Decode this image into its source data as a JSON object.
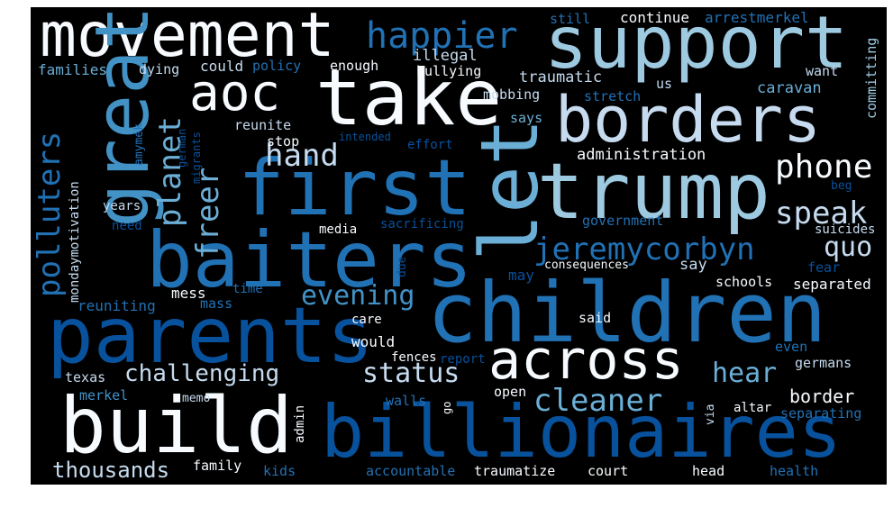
{
  "palette": {
    "background": "#000000",
    "white": "#f7fbff",
    "pale": "#deebf7",
    "light": "#c6dbef",
    "sky": "#9ecae1",
    "mid": "#6baed6",
    "medium": "#4292c6",
    "blue": "#2171b5",
    "deep": "#08519c",
    "navy": "#08306b"
  },
  "words": [
    {
      "text": "movement",
      "color": "white"
    },
    {
      "text": "happier",
      "color": "blue"
    },
    {
      "text": "support",
      "color": "sky"
    },
    {
      "text": "aoc",
      "color": "white"
    },
    {
      "text": "take",
      "color": "white"
    },
    {
      "text": "borders",
      "color": "light"
    },
    {
      "text": "great",
      "color": "medium"
    },
    {
      "text": "first",
      "color": "blue"
    },
    {
      "text": "let",
      "color": "mid"
    },
    {
      "text": "trump",
      "color": "sky"
    },
    {
      "text": "baiters",
      "color": "blue"
    },
    {
      "text": "parents",
      "color": "deep"
    },
    {
      "text": "children",
      "color": "blue"
    },
    {
      "text": "build",
      "color": "white"
    },
    {
      "text": "billionaires",
      "color": "deep"
    },
    {
      "text": "across",
      "color": "white"
    },
    {
      "text": "jeremycorbyn",
      "color": "blue"
    },
    {
      "text": "polluters",
      "color": "blue"
    },
    {
      "text": "planet",
      "color": "mid"
    },
    {
      "text": "freer",
      "color": "mid"
    },
    {
      "text": "hand",
      "color": "light"
    },
    {
      "text": "phone",
      "color": "white"
    },
    {
      "text": "speak",
      "color": "light"
    },
    {
      "text": "quo",
      "color": "light"
    },
    {
      "text": "evening",
      "color": "medium"
    },
    {
      "text": "status",
      "color": "light"
    },
    {
      "text": "challenging",
      "color": "light"
    },
    {
      "text": "hear",
      "color": "mid"
    },
    {
      "text": "cleaner",
      "color": "mid"
    },
    {
      "text": "border",
      "color": "white"
    },
    {
      "text": "thousands",
      "color": "light"
    },
    {
      "text": "illegal",
      "color": "light"
    },
    {
      "text": "continue",
      "color": "white"
    },
    {
      "text": "arrestmerkel",
      "color": "blue"
    },
    {
      "text": "still",
      "color": "blue"
    },
    {
      "text": "committing",
      "color": "sky"
    },
    {
      "text": "want",
      "color": "light"
    },
    {
      "text": "families",
      "color": "mid"
    },
    {
      "text": "dying",
      "color": "light"
    },
    {
      "text": "could",
      "color": "light"
    },
    {
      "text": "policy",
      "color": "blue"
    },
    {
      "text": "enough",
      "color": "white"
    },
    {
      "text": "bullying",
      "color": "white"
    },
    {
      "text": "traumatic",
      "color": "light"
    },
    {
      "text": "caravan",
      "color": "mid"
    },
    {
      "text": "us",
      "color": "light"
    },
    {
      "text": "mobbing",
      "color": "light"
    },
    {
      "text": "stretch",
      "color": "blue"
    },
    {
      "text": "says",
      "color": "mid"
    },
    {
      "text": "amymek",
      "color": "blue"
    },
    {
      "text": "german",
      "color": "deep"
    },
    {
      "text": "migrants",
      "color": "deep"
    },
    {
      "text": "reunite",
      "color": "light"
    },
    {
      "text": "stop",
      "color": "white"
    },
    {
      "text": "intended",
      "color": "deep"
    },
    {
      "text": "effort",
      "color": "deep"
    },
    {
      "text": "administration",
      "color": "white"
    },
    {
      "text": "mondaymotivation",
      "color": "light"
    },
    {
      "text": "years",
      "color": "light"
    },
    {
      "text": "need",
      "color": "deep"
    },
    {
      "text": "sacrificing",
      "color": "deep"
    },
    {
      "text": "government",
      "color": "blue"
    },
    {
      "text": "beg",
      "color": "deep"
    },
    {
      "text": "suicides",
      "color": "light"
    },
    {
      "text": "media",
      "color": "white"
    },
    {
      "text": "due",
      "color": "deep"
    },
    {
      "text": "may",
      "color": "deep"
    },
    {
      "text": "consequences",
      "color": "white"
    },
    {
      "text": "say",
      "color": "light"
    },
    {
      "text": "fear",
      "color": "deep"
    },
    {
      "text": "separated",
      "color": "white"
    },
    {
      "text": "schools",
      "color": "white"
    },
    {
      "text": "mess",
      "color": "white"
    },
    {
      "text": "time",
      "color": "blue"
    },
    {
      "text": "mass",
      "color": "blue"
    },
    {
      "text": "reuniting",
      "color": "blue"
    },
    {
      "text": "care",
      "color": "white"
    },
    {
      "text": "said",
      "color": "white"
    },
    {
      "text": "would",
      "color": "white"
    },
    {
      "text": "fences",
      "color": "white"
    },
    {
      "text": "report",
      "color": "deep"
    },
    {
      "text": "even",
      "color": "blue"
    },
    {
      "text": "germans",
      "color": "light"
    },
    {
      "text": "texas",
      "color": "light"
    },
    {
      "text": "merkel",
      "color": "medium"
    },
    {
      "text": "memo",
      "color": "light"
    },
    {
      "text": "admin",
      "color": "white"
    },
    {
      "text": "walls",
      "color": "blue"
    },
    {
      "text": "go",
      "color": "white"
    },
    {
      "text": "open",
      "color": "white"
    },
    {
      "text": "via",
      "color": "light"
    },
    {
      "text": "altar",
      "color": "white"
    },
    {
      "text": "separating",
      "color": "blue"
    },
    {
      "text": "family",
      "color": "white"
    },
    {
      "text": "kids",
      "color": "blue"
    },
    {
      "text": "accountable",
      "color": "blue"
    },
    {
      "text": "traumatize",
      "color": "white"
    },
    {
      "text": "court",
      "color": "white"
    },
    {
      "text": "head",
      "color": "white"
    },
    {
      "text": "health",
      "color": "blue"
    }
  ]
}
